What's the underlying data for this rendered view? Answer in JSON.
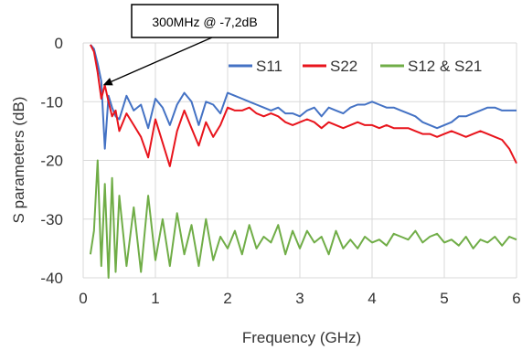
{
  "chart_data": {
    "type": "line",
    "xlabel": "Frequency (GHz)",
    "ylabel": "S parameters (dB)",
    "xlim": [
      0,
      6
    ],
    "ylim": [
      -40,
      0
    ],
    "xticks": [
      0,
      1,
      2,
      3,
      4,
      5,
      6
    ],
    "yticks": [
      0,
      -10,
      -20,
      -30,
      -40
    ],
    "grid": true,
    "legend_position": "top-right",
    "annotation": {
      "text": "300MHz @ -7,2dB",
      "x": 0.3,
      "y": -7.2
    },
    "series": [
      {
        "name": "S11",
        "color": "#4472c4",
        "x": [
          0.1,
          0.15,
          0.2,
          0.25,
          0.3,
          0.35,
          0.4,
          0.45,
          0.5,
          0.6,
          0.7,
          0.8,
          0.9,
          1.0,
          1.1,
          1.2,
          1.3,
          1.4,
          1.5,
          1.6,
          1.7,
          1.8,
          1.9,
          2.0,
          2.1,
          2.2,
          2.3,
          2.4,
          2.5,
          2.6,
          2.7,
          2.8,
          2.9,
          3.0,
          3.1,
          3.2,
          3.3,
          3.4,
          3.5,
          3.6,
          3.7,
          3.8,
          3.9,
          4.0,
          4.1,
          4.2,
          4.3,
          4.4,
          4.5,
          4.6,
          4.7,
          4.8,
          4.9,
          5.0,
          5.1,
          5.2,
          5.3,
          5.4,
          5.5,
          5.6,
          5.7,
          5.8,
          5.9,
          6.0
        ],
        "y": [
          -0.3,
          -1.0,
          -3.5,
          -6.5,
          -18.0,
          -9.0,
          -11.0,
          -12.5,
          -13.0,
          -9.0,
          -11.5,
          -10.5,
          -14.5,
          -9.5,
          -11.0,
          -14.0,
          -10.5,
          -8.5,
          -10.0,
          -14.0,
          -10.0,
          -10.5,
          -12.0,
          -8.5,
          -9.0,
          -9.5,
          -10.0,
          -10.5,
          -11.0,
          -11.5,
          -11.0,
          -12.0,
          -12.0,
          -12.5,
          -11.5,
          -11.0,
          -12.5,
          -11.0,
          -11.5,
          -12.0,
          -11.0,
          -10.5,
          -10.5,
          -10.0,
          -10.5,
          -11.0,
          -11.0,
          -11.5,
          -12.0,
          -12.5,
          -13.5,
          -14.0,
          -14.5,
          -14.0,
          -13.5,
          -12.5,
          -12.5,
          -12.0,
          -11.5,
          -11.0,
          -11.0,
          -11.5,
          -11.5,
          -11.5
        ]
      },
      {
        "name": "S22",
        "color": "#e8141c",
        "x": [
          0.1,
          0.15,
          0.2,
          0.25,
          0.3,
          0.35,
          0.4,
          0.45,
          0.5,
          0.6,
          0.7,
          0.8,
          0.9,
          1.0,
          1.1,
          1.2,
          1.3,
          1.4,
          1.5,
          1.6,
          1.7,
          1.8,
          1.9,
          2.0,
          2.1,
          2.2,
          2.3,
          2.4,
          2.5,
          2.6,
          2.7,
          2.8,
          2.9,
          3.0,
          3.1,
          3.2,
          3.3,
          3.4,
          3.5,
          3.6,
          3.7,
          3.8,
          3.9,
          4.0,
          4.1,
          4.2,
          4.3,
          4.4,
          4.5,
          4.6,
          4.7,
          4.8,
          4.9,
          5.0,
          5.1,
          5.2,
          5.3,
          5.4,
          5.5,
          5.6,
          5.7,
          5.8,
          5.9,
          6.0
        ],
        "y": [
          -0.3,
          -1.5,
          -5.0,
          -9.5,
          -7.2,
          -10.0,
          -12.5,
          -11.5,
          -15.0,
          -12.0,
          -14.0,
          -16.0,
          -19.5,
          -13.0,
          -17.0,
          -21.0,
          -15.0,
          -11.5,
          -14.5,
          -17.5,
          -13.5,
          -16.0,
          -14.0,
          -11.0,
          -11.5,
          -11.5,
          -11.0,
          -12.0,
          -12.5,
          -12.0,
          -12.5,
          -13.5,
          -14.0,
          -13.5,
          -13.0,
          -13.5,
          -14.5,
          -13.5,
          -14.0,
          -14.5,
          -14.0,
          -13.5,
          -14.0,
          -14.0,
          -14.5,
          -14.0,
          -14.5,
          -14.5,
          -14.5,
          -15.0,
          -15.5,
          -15.5,
          -16.0,
          -15.5,
          -15.0,
          -15.5,
          -16.0,
          -15.5,
          -15.0,
          -15.5,
          -16.0,
          -16.5,
          -18.0,
          -20.5
        ]
      },
      {
        "name": "S12 & S21",
        "color": "#70ad47",
        "x": [
          0.1,
          0.15,
          0.2,
          0.25,
          0.3,
          0.35,
          0.4,
          0.45,
          0.5,
          0.6,
          0.7,
          0.8,
          0.9,
          1.0,
          1.1,
          1.2,
          1.3,
          1.4,
          1.5,
          1.6,
          1.7,
          1.8,
          1.9,
          2.0,
          2.1,
          2.2,
          2.3,
          2.4,
          2.5,
          2.6,
          2.7,
          2.8,
          2.9,
          3.0,
          3.1,
          3.2,
          3.3,
          3.4,
          3.5,
          3.6,
          3.7,
          3.8,
          3.9,
          4.0,
          4.1,
          4.2,
          4.3,
          4.4,
          4.5,
          4.6,
          4.7,
          4.8,
          4.9,
          5.0,
          5.1,
          5.2,
          5.3,
          5.4,
          5.5,
          5.6,
          5.7,
          5.8,
          5.9,
          6.0
        ],
        "y": [
          -36.0,
          -32.0,
          -20.0,
          -38.0,
          -24.0,
          -40.0,
          -23.0,
          -39.0,
          -26.0,
          -38.0,
          -28.0,
          -39.0,
          -26.0,
          -37.0,
          -30.0,
          -38.0,
          -29.0,
          -36.0,
          -31.0,
          -38.0,
          -30.0,
          -37.0,
          -33.0,
          -35.0,
          -32.0,
          -36.0,
          -31.0,
          -35.0,
          -33.0,
          -34.0,
          -31.0,
          -36.0,
          -32.0,
          -35.0,
          -32.0,
          -34.0,
          -33.0,
          -36.0,
          -32.0,
          -35.0,
          -33.5,
          -35.0,
          -33.0,
          -34.0,
          -33.5,
          -34.5,
          -32.5,
          -33.0,
          -33.5,
          -32.0,
          -34.0,
          -33.0,
          -32.5,
          -34.0,
          -33.5,
          -34.5,
          -33.0,
          -35.0,
          -33.5,
          -34.0,
          -33.0,
          -34.5,
          -33.0,
          -33.5
        ]
      }
    ]
  }
}
